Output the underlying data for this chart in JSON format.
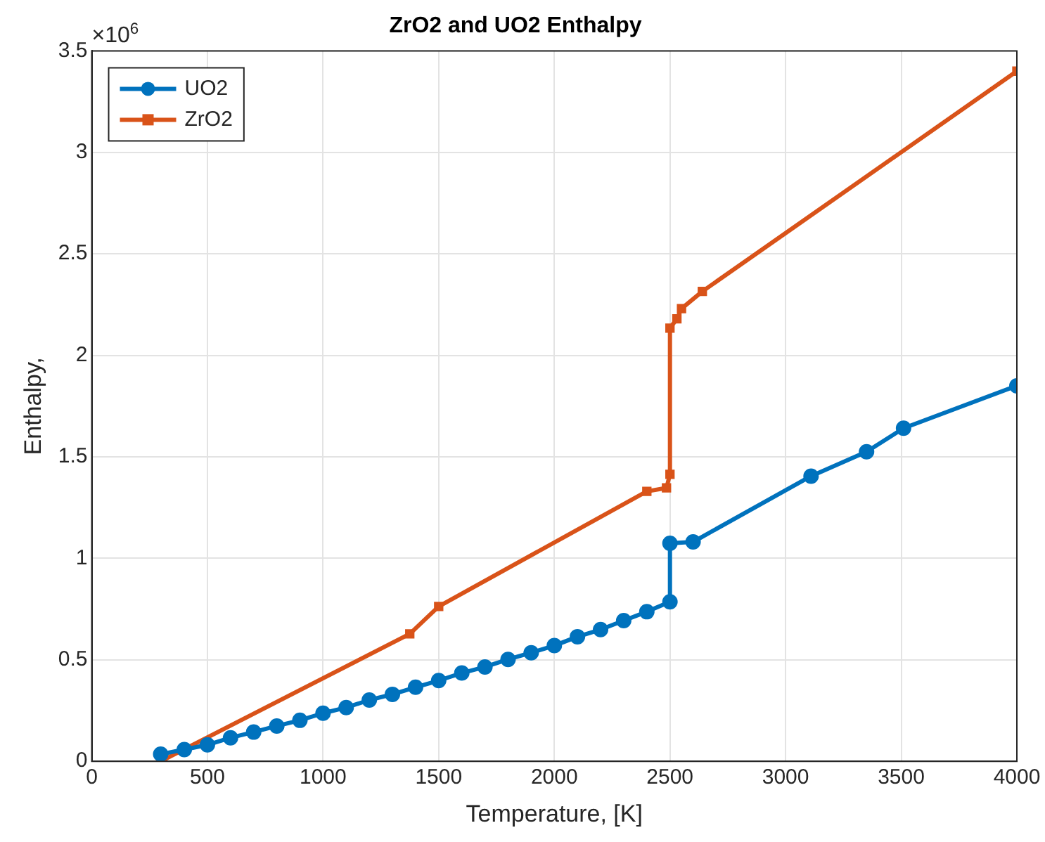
{
  "chart_data": {
    "type": "line",
    "title": "ZrO2 and UO2 Enthalpy",
    "xlabel": "Temperature, [K]",
    "ylabel": "Enthalpy,",
    "annotations": [
      "×10$^{6}$"
    ],
    "series": [
      {
        "name": "UO2",
        "color": "#0072bd",
        "marker": "circle",
        "x": [
          298,
          400,
          500,
          600,
          700,
          800,
          900,
          1000,
          1100,
          1200,
          1300,
          1400,
          1500,
          1600,
          1700,
          1800,
          1900,
          2000,
          2100,
          2200,
          2300,
          2400,
          2500,
          2500,
          2600,
          3110,
          3350,
          3510,
          4000
        ],
        "values": [
          0.035,
          0.058,
          0.081,
          0.116,
          0.144,
          0.174,
          0.202,
          0.237,
          0.265,
          0.302,
          0.33,
          0.365,
          0.398,
          0.435,
          0.465,
          0.502,
          0.535,
          0.57,
          0.614,
          0.649,
          0.693,
          0.737,
          0.786,
          1.074,
          1.081,
          1.405,
          1.525,
          1.641,
          1.85
        ]
      },
      {
        "name": "ZrO2",
        "color": "#d95319",
        "marker": "square",
        "x": [
          298,
          1375,
          1500,
          2400,
          2485,
          2500,
          2500,
          2530,
          2550,
          2640,
          4000
        ],
        "values": [
          0,
          0.628,
          0.763,
          1.33,
          1.347,
          1.414,
          2.134,
          2.18,
          2.23,
          2.315,
          3.4
        ]
      }
    ],
    "xlim": [
      0,
      4000
    ],
    "xticks": [
      0,
      500,
      1000,
      1500,
      2000,
      2500,
      3000,
      3500,
      4000
    ],
    "ylim": [
      0,
      3.5
    ],
    "yticks": [
      0,
      0.5,
      1,
      1.5,
      2,
      2.5,
      3,
      3.5
    ],
    "grid": true,
    "legend": "top left",
    "line_style": "solid"
  }
}
